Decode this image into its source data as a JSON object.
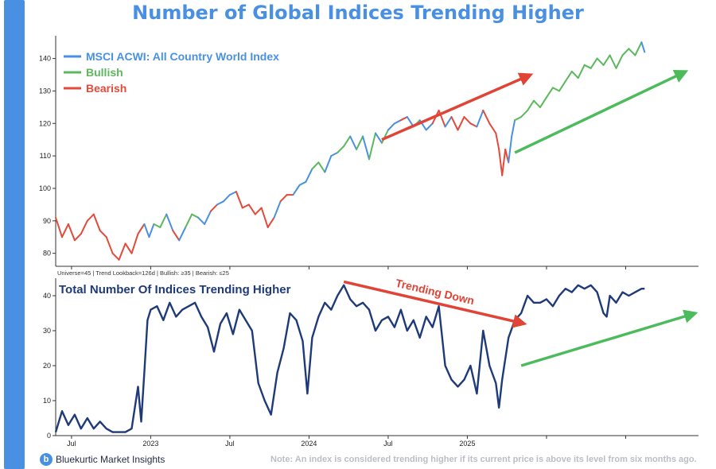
{
  "title": "Number of Global Indices Trending Higher",
  "brand": {
    "name": "Bluekurtic Market Insights",
    "logo_letter": "b"
  },
  "footnote": "Note: An index is considered trending higher if its current price is above its level from six months ago.",
  "colors": {
    "accent": "#4a90e2",
    "bullish": "#5cb85c",
    "bearish": "#e24a3b",
    "breadth": "#1f3a78",
    "arrow_red": "#e04436",
    "arrow_green": "#4cbb5c"
  },
  "chart_data": [
    {
      "type": "line",
      "title": "Number of Global Indices Trending Higher",
      "xlabel": "",
      "ylabel": "",
      "ylim": [
        76,
        147
      ],
      "y_ticks": [
        80,
        90,
        100,
        110,
        120,
        130,
        140
      ],
      "x_ticks": [
        {
          "label": "Jul",
          "t": 0.0
        },
        {
          "label": "2023",
          "t": 0.25
        },
        {
          "label": "Jul",
          "t": 0.5
        },
        {
          "label": "2024",
          "t": 0.75
        },
        {
          "label": "Jul",
          "t": 1.0
        },
        {
          "label": "2025",
          "t": 1.25
        },
        {
          "label": "",
          "t": 1.5
        },
        {
          "label": "",
          "t": 1.75
        }
      ],
      "x_range": [
        -0.05,
        1.98
      ],
      "legend": [
        "MSCI ACWI: All Country World Index",
        "Bullish",
        "Bearish"
      ],
      "legend_position": "top-left",
      "series": [
        {
          "name": "MSCI ACWI: All Country World Index",
          "points": [
            [
              -0.05,
              91,
              "bear"
            ],
            [
              -0.03,
              85,
              "bear"
            ],
            [
              -0.01,
              89,
              "bear"
            ],
            [
              0.01,
              84,
              "bear"
            ],
            [
              0.03,
              86,
              "bear"
            ],
            [
              0.05,
              90,
              "bear"
            ],
            [
              0.07,
              92,
              "bear"
            ],
            [
              0.09,
              87,
              "bear"
            ],
            [
              0.11,
              85,
              "bear"
            ],
            [
              0.13,
              80,
              "bear"
            ],
            [
              0.15,
              78,
              "bear"
            ],
            [
              0.17,
              83,
              "bear"
            ],
            [
              0.19,
              80,
              "bear"
            ],
            [
              0.21,
              86,
              "bear"
            ],
            [
              0.23,
              89,
              "bear"
            ],
            [
              0.245,
              85,
              "base"
            ],
            [
              0.26,
              89,
              "base"
            ],
            [
              0.28,
              88,
              "bull"
            ],
            [
              0.3,
              92,
              "bull"
            ],
            [
              0.32,
              87,
              "base"
            ],
            [
              0.34,
              84,
              "bear"
            ],
            [
              0.36,
              88,
              "base"
            ],
            [
              0.38,
              92,
              "bull"
            ],
            [
              0.4,
              91,
              "bull"
            ],
            [
              0.42,
              89,
              "base"
            ],
            [
              0.44,
              93,
              "base"
            ],
            [
              0.46,
              95,
              "bear"
            ],
            [
              0.48,
              96,
              "base"
            ],
            [
              0.5,
              98,
              "base"
            ],
            [
              0.52,
              99,
              "base"
            ],
            [
              0.54,
              94,
              "bear"
            ],
            [
              0.56,
              95,
              "bear"
            ],
            [
              0.58,
              92,
              "bear"
            ],
            [
              0.6,
              94,
              "bear"
            ],
            [
              0.62,
              88,
              "bear"
            ],
            [
              0.64,
              91,
              "bear"
            ],
            [
              0.66,
              96,
              "base"
            ],
            [
              0.68,
              98,
              "bear"
            ],
            [
              0.7,
              98,
              "bear"
            ],
            [
              0.72,
              101,
              "base"
            ],
            [
              0.74,
              102,
              "base"
            ],
            [
              0.76,
              106,
              "base"
            ],
            [
              0.78,
              108,
              "bull"
            ],
            [
              0.8,
              105,
              "bull"
            ],
            [
              0.82,
              110,
              "base"
            ],
            [
              0.84,
              111,
              "base"
            ],
            [
              0.86,
              113,
              "bull"
            ],
            [
              0.88,
              116,
              "bull"
            ],
            [
              0.9,
              112,
              "base"
            ],
            [
              0.92,
              116,
              "bull"
            ],
            [
              0.94,
              109,
              "base"
            ],
            [
              0.96,
              117,
              "bull"
            ],
            [
              0.98,
              114,
              "base"
            ],
            [
              1.0,
              118,
              "bull"
            ],
            [
              1.02,
              120,
              "base"
            ],
            [
              1.04,
              121,
              "base"
            ],
            [
              1.06,
              122,
              "bear"
            ],
            [
              1.08,
              119,
              "base"
            ],
            [
              1.1,
              121,
              "bull"
            ],
            [
              1.12,
              118,
              "base"
            ],
            [
              1.14,
              120,
              "base"
            ],
            [
              1.16,
              124,
              "bear"
            ],
            [
              1.18,
              119,
              "bear"
            ],
            [
              1.2,
              122,
              "base"
            ],
            [
              1.22,
              118,
              "bear"
            ],
            [
              1.24,
              122,
              "bear"
            ],
            [
              1.26,
              120,
              "bear"
            ],
            [
              1.28,
              119,
              "bear"
            ],
            [
              1.3,
              124,
              "base"
            ],
            [
              1.32,
              120,
              "bear"
            ],
            [
              1.34,
              117,
              "bear"
            ],
            [
              1.35,
              112,
              "bear"
            ],
            [
              1.36,
              104,
              "bear"
            ],
            [
              1.37,
              112,
              "bear"
            ],
            [
              1.38,
              108,
              "bear"
            ],
            [
              1.39,
              116,
              "base"
            ],
            [
              1.4,
              121,
              "base"
            ],
            [
              1.42,
              122,
              "bull"
            ],
            [
              1.44,
              124,
              "bull"
            ],
            [
              1.46,
              127,
              "bull"
            ],
            [
              1.48,
              125,
              "bull"
            ],
            [
              1.5,
              128,
              "bull"
            ],
            [
              1.52,
              131,
              "bull"
            ],
            [
              1.54,
              130,
              "bull"
            ],
            [
              1.56,
              133,
              "bull"
            ],
            [
              1.58,
              136,
              "bull"
            ],
            [
              1.6,
              134,
              "bull"
            ],
            [
              1.62,
              138,
              "bull"
            ],
            [
              1.64,
              137,
              "bull"
            ],
            [
              1.66,
              140,
              "bull"
            ],
            [
              1.68,
              138,
              "bull"
            ],
            [
              1.7,
              141,
              "bull"
            ],
            [
              1.72,
              137,
              "bull"
            ],
            [
              1.74,
              141,
              "bull"
            ],
            [
              1.76,
              143,
              "bull"
            ],
            [
              1.78,
              141,
              "bull"
            ],
            [
              1.8,
              145,
              "bull"
            ],
            [
              1.81,
              142,
              "base"
            ]
          ]
        }
      ],
      "annotations": [
        {
          "type": "arrow",
          "color": "red",
          "from": [
            0.98,
            115
          ],
          "to": [
            1.45,
            135
          ]
        },
        {
          "type": "arrow",
          "color": "green",
          "from": [
            1.4,
            111
          ],
          "to": [
            1.94,
            136
          ]
        }
      ]
    },
    {
      "type": "line",
      "title": "Total Number Of Indices Trending Higher",
      "subtitle": "Universe=45 | Trend Lookback=126d | Bullish: ≥35 | Bearish: ≤25",
      "ylim": [
        0,
        45
      ],
      "y_ticks": [
        0,
        10,
        20,
        30,
        40
      ],
      "series": [
        {
          "name": "Total Number Of Indices Trending Higher",
          "points": [
            [
              -0.05,
              1
            ],
            [
              -0.03,
              7
            ],
            [
              -0.01,
              3
            ],
            [
              0.01,
              6
            ],
            [
              0.03,
              2
            ],
            [
              0.05,
              5
            ],
            [
              0.07,
              2
            ],
            [
              0.09,
              4
            ],
            [
              0.11,
              2
            ],
            [
              0.13,
              1
            ],
            [
              0.15,
              1
            ],
            [
              0.17,
              1
            ],
            [
              0.19,
              2
            ],
            [
              0.21,
              14
            ],
            [
              0.22,
              4
            ],
            [
              0.23,
              18
            ],
            [
              0.24,
              33
            ],
            [
              0.25,
              36
            ],
            [
              0.27,
              37
            ],
            [
              0.29,
              33
            ],
            [
              0.31,
              38
            ],
            [
              0.33,
              34
            ],
            [
              0.35,
              36
            ],
            [
              0.37,
              37
            ],
            [
              0.39,
              38
            ],
            [
              0.41,
              34
            ],
            [
              0.43,
              31
            ],
            [
              0.45,
              24
            ],
            [
              0.47,
              32
            ],
            [
              0.49,
              35
            ],
            [
              0.51,
              29
            ],
            [
              0.53,
              36
            ],
            [
              0.55,
              33
            ],
            [
              0.57,
              30
            ],
            [
              0.59,
              15
            ],
            [
              0.61,
              10
            ],
            [
              0.63,
              6
            ],
            [
              0.65,
              18
            ],
            [
              0.67,
              25
            ],
            [
              0.69,
              35
            ],
            [
              0.71,
              33
            ],
            [
              0.73,
              27
            ],
            [
              0.745,
              12
            ],
            [
              0.76,
              28
            ],
            [
              0.78,
              34
            ],
            [
              0.8,
              38
            ],
            [
              0.82,
              36
            ],
            [
              0.84,
              40
            ],
            [
              0.86,
              43
            ],
            [
              0.88,
              39
            ],
            [
              0.9,
              37
            ],
            [
              0.92,
              38
            ],
            [
              0.94,
              36
            ],
            [
              0.96,
              30
            ],
            [
              0.98,
              33
            ],
            [
              1.0,
              34
            ],
            [
              1.02,
              31
            ],
            [
              1.04,
              36
            ],
            [
              1.06,
              30
            ],
            [
              1.08,
              33
            ],
            [
              1.1,
              28
            ],
            [
              1.12,
              34
            ],
            [
              1.14,
              31
            ],
            [
              1.16,
              37
            ],
            [
              1.18,
              20
            ],
            [
              1.2,
              16
            ],
            [
              1.22,
              14
            ],
            [
              1.24,
              16
            ],
            [
              1.26,
              20
            ],
            [
              1.28,
              12
            ],
            [
              1.3,
              30
            ],
            [
              1.32,
              20
            ],
            [
              1.34,
              15
            ],
            [
              1.35,
              8
            ],
            [
              1.36,
              16
            ],
            [
              1.38,
              28
            ],
            [
              1.4,
              33
            ],
            [
              1.42,
              35
            ],
            [
              1.44,
              40
            ],
            [
              1.46,
              38
            ],
            [
              1.48,
              38
            ],
            [
              1.5,
              39
            ],
            [
              1.52,
              37
            ],
            [
              1.54,
              40
            ],
            [
              1.56,
              42
            ],
            [
              1.58,
              41
            ],
            [
              1.6,
              43
            ],
            [
              1.62,
              42
            ],
            [
              1.64,
              43
            ],
            [
              1.66,
              41
            ],
            [
              1.68,
              35
            ],
            [
              1.69,
              34
            ],
            [
              1.7,
              40
            ],
            [
              1.72,
              38
            ],
            [
              1.74,
              41
            ],
            [
              1.76,
              40
            ],
            [
              1.78,
              41
            ],
            [
              1.8,
              42
            ],
            [
              1.81,
              42
            ]
          ]
        }
      ],
      "annotations": [
        {
          "type": "arrow",
          "color": "red",
          "from": [
            0.86,
            44
          ],
          "to": [
            1.43,
            32
          ],
          "label": "Trending Down"
        },
        {
          "type": "arrow",
          "color": "green",
          "from": [
            1.42,
            20
          ],
          "to": [
            1.97,
            35
          ]
        }
      ]
    }
  ]
}
